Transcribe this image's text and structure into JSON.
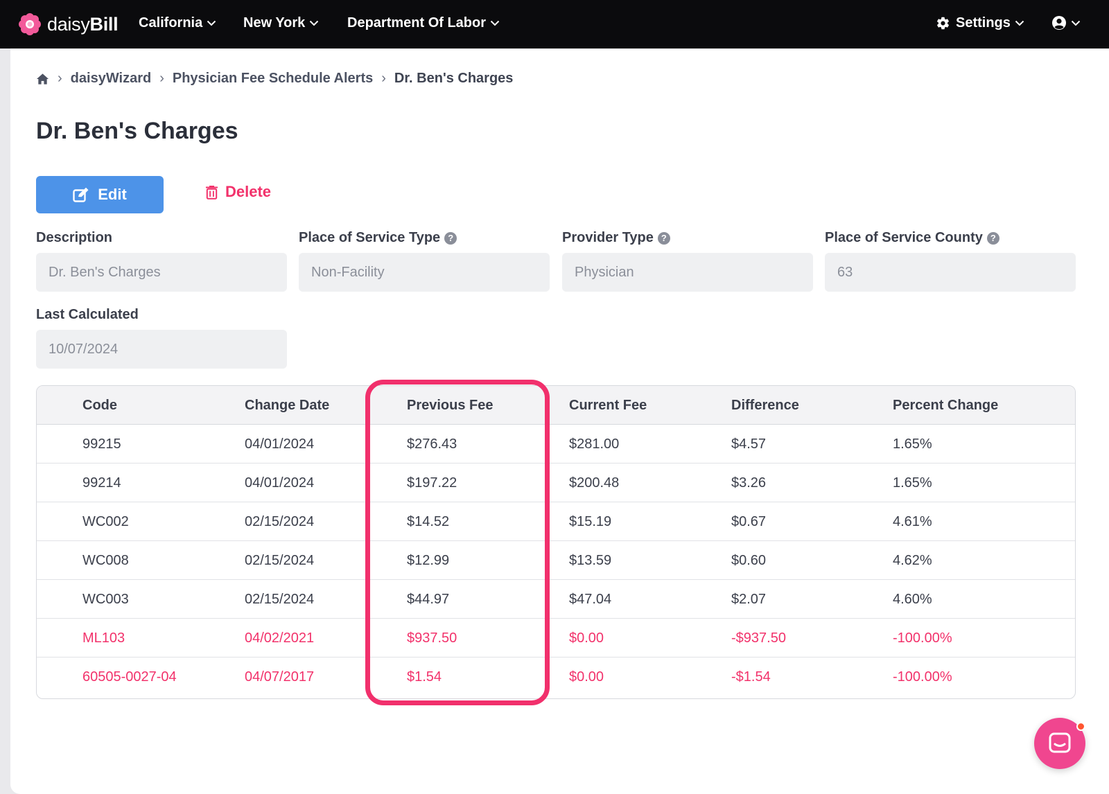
{
  "nav": {
    "brand_light": "daisy",
    "brand_bold": "Bill",
    "menu": [
      "California",
      "New York",
      "Department Of Labor"
    ],
    "settings_label": "Settings"
  },
  "breadcrumb": {
    "items": [
      "daisyWizard",
      "Physician Fee Schedule Alerts"
    ],
    "current": "Dr. Ben's Charges"
  },
  "page": {
    "title": "Dr. Ben's Charges",
    "edit_label": "Edit",
    "delete_label": "Delete"
  },
  "fields": {
    "description": {
      "label": "Description",
      "value": "Dr. Ben's Charges"
    },
    "place_of_service_type": {
      "label": "Place of Service Type",
      "value": "Non-Facility"
    },
    "provider_type": {
      "label": "Provider Type",
      "value": "Physician"
    },
    "place_of_service_county": {
      "label": "Place of Service County",
      "value": "63"
    },
    "last_calculated": {
      "label": "Last Calculated",
      "value": "10/07/2024"
    }
  },
  "table": {
    "headers": [
      "Code",
      "Change Date",
      "Previous Fee",
      "Current Fee",
      "Difference",
      "Percent Change"
    ],
    "rows": [
      {
        "code": "99215",
        "change_date": "04/01/2024",
        "previous_fee": "$276.43",
        "current_fee": "$281.00",
        "difference": "$4.57",
        "percent_change": "1.65%"
      },
      {
        "code": "99214",
        "change_date": "04/01/2024",
        "previous_fee": "$197.22",
        "current_fee": "$200.48",
        "difference": "$3.26",
        "percent_change": "1.65%"
      },
      {
        "code": "WC002",
        "change_date": "02/15/2024",
        "previous_fee": "$14.52",
        "current_fee": "$15.19",
        "difference": "$0.67",
        "percent_change": "4.61%"
      },
      {
        "code": "WC008",
        "change_date": "02/15/2024",
        "previous_fee": "$12.99",
        "current_fee": "$13.59",
        "difference": "$0.60",
        "percent_change": "4.62%"
      },
      {
        "code": "WC003",
        "change_date": "02/15/2024",
        "previous_fee": "$44.97",
        "current_fee": "$47.04",
        "difference": "$2.07",
        "percent_change": "4.60%"
      },
      {
        "code": "ML103",
        "change_date": "04/02/2021",
        "previous_fee": "$937.50",
        "current_fee": "$0.00",
        "difference": "-$937.50",
        "percent_change": "-100.00%"
      },
      {
        "code": "60505-0027-04",
        "change_date": "04/07/2017",
        "previous_fee": "$1.54",
        "current_fee": "$0.00",
        "difference": "-$1.54",
        "percent_change": "-100.00%"
      }
    ]
  },
  "colors": {
    "nav_bg": "#0b0b0d",
    "edit_button": "#4d93e8",
    "alert": "#f2326b",
    "highlight": "#f1306c",
    "chat": "#f0468f"
  }
}
